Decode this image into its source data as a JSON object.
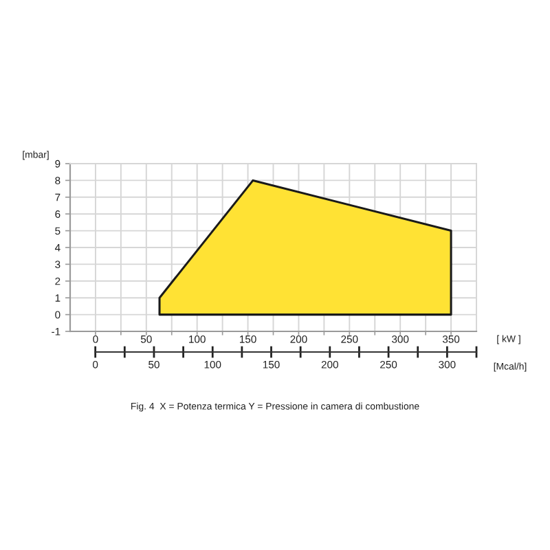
{
  "chart_data": {
    "type": "area",
    "ylabel": "[mbar]",
    "xlabel": "[ kW ]",
    "x2label": "[Mcal/h]",
    "annotations": [
      "Fig. 4  X = Potenza termica Y = Pressione in camera di combustione"
    ],
    "series": [
      {
        "color": "#ffe234",
        "x": [
          63,
          155,
          350
        ],
        "values": [
          1,
          8,
          5
        ]
      }
    ],
    "xlim": [
      -25,
      375
    ],
    "xticks": [
      0,
      {
        "value": 25,
        "label": null
      },
      50,
      {
        "value": 75,
        "label": null
      },
      100,
      {
        "value": 125,
        "label": null
      },
      150,
      {
        "value": 175,
        "label": null
      },
      200,
      {
        "value": 225,
        "label": null
      },
      250,
      {
        "value": 275,
        "label": null
      },
      300,
      {
        "value": 325,
        "label": null
      },
      350
    ],
    "ylim": [
      -1,
      9
    ],
    "yticks": [
      -1,
      0,
      1,
      2,
      3,
      4,
      5,
      6,
      7,
      8,
      9
    ],
    "x2lim": [
      -21.5,
      325
    ],
    "x2ticks": [
      0,
      {
        "value": 25,
        "label": null
      },
      50,
      {
        "value": 75,
        "label": null
      },
      100,
      {
        "value": 125,
        "label": null
      },
      150,
      {
        "value": 175,
        "label": null
      },
      200,
      {
        "value": 225,
        "label": null
      },
      250,
      {
        "value": 275,
        "label": null
      },
      300,
      {
        "value": 325,
        "label": null
      }
    ],
    "grid": true
  }
}
